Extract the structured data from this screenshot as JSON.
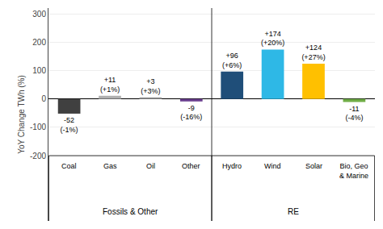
{
  "chart_data": {
    "type": "bar",
    "categories": [
      "Coal",
      "Gas",
      "Oil",
      "Other",
      "Hydro",
      "Wind",
      "Solar",
      "Bio, Geo\n& Marine"
    ],
    "values": [
      -52,
      11,
      3,
      -9,
      96,
      174,
      124,
      -11
    ],
    "value_labels": [
      "-52\n(-1%)",
      "+11\n(+1%)",
      "+3\n(+3%)",
      "-9\n(-16%)",
      "+96\n(+6%)",
      "+174\n(+20%)",
      "+124\n(+27%)",
      "-11\n(-4%)"
    ],
    "colors": [
      "#404040",
      "#b0b0b0",
      "#808080",
      "#6a3f8f",
      "#1f4e79",
      "#2eb8e6",
      "#ffc000",
      "#70ad47"
    ],
    "ylabel": "YoY Change TWh (%)",
    "ylim": [
      -430,
      320
    ],
    "yticks": [
      -200,
      -100,
      0,
      100,
      200,
      300
    ],
    "grid": true,
    "data_labels": true,
    "groups": [
      {
        "name": "Fossils & Other",
        "categories": [
          "Coal",
          "Gas",
          "Oil",
          "Other"
        ]
      },
      {
        "name": "RE",
        "categories": [
          "Hydro",
          "Wind",
          "Solar",
          "Bio, Geo\n& Marine"
        ]
      }
    ]
  }
}
